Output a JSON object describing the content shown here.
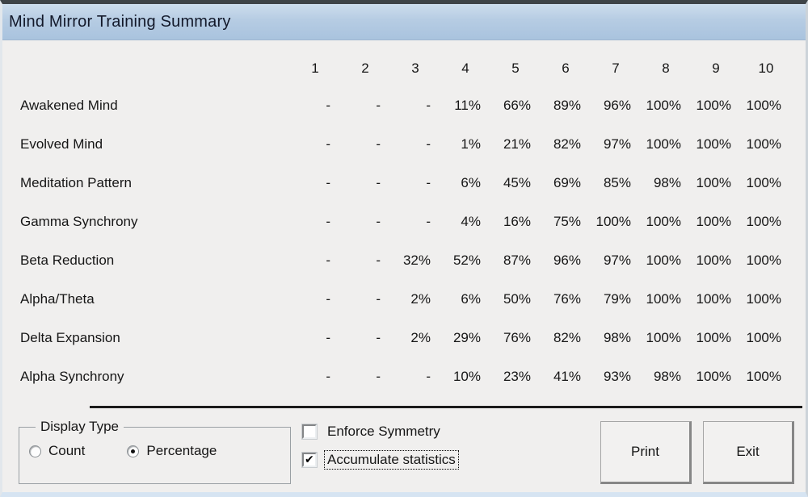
{
  "window": {
    "title": "Mind Mirror Training Summary"
  },
  "table": {
    "columns": [
      "1",
      "2",
      "3",
      "4",
      "5",
      "6",
      "7",
      "8",
      "9",
      "10"
    ],
    "rows": [
      {
        "label": "Awakened Mind",
        "values": [
          "-",
          "-",
          "-",
          "11%",
          "66%",
          "89%",
          "96%",
          "100%",
          "100%",
          "100%"
        ]
      },
      {
        "label": "Evolved Mind",
        "values": [
          "-",
          "-",
          "-",
          "1%",
          "21%",
          "82%",
          "97%",
          "100%",
          "100%",
          "100%"
        ]
      },
      {
        "label": "Meditation Pattern",
        "values": [
          "-",
          "-",
          "-",
          "6%",
          "45%",
          "69%",
          "85%",
          "98%",
          "100%",
          "100%"
        ]
      },
      {
        "label": "Gamma Synchrony",
        "values": [
          "-",
          "-",
          "-",
          "4%",
          "16%",
          "75%",
          "100%",
          "100%",
          "100%",
          "100%"
        ]
      },
      {
        "label": "Beta Reduction",
        "values": [
          "-",
          "-",
          "32%",
          "52%",
          "87%",
          "96%",
          "97%",
          "100%",
          "100%",
          "100%"
        ]
      },
      {
        "label": "Alpha/Theta",
        "values": [
          "-",
          "-",
          "2%",
          "6%",
          "50%",
          "76%",
          "79%",
          "100%",
          "100%",
          "100%"
        ]
      },
      {
        "label": "Delta Expansion",
        "values": [
          "-",
          "-",
          "2%",
          "29%",
          "76%",
          "82%",
          "98%",
          "100%",
          "100%",
          "100%"
        ]
      },
      {
        "label": "Alpha Synchrony",
        "values": [
          "-",
          "-",
          "-",
          "10%",
          "23%",
          "41%",
          "93%",
          "98%",
          "100%",
          "100%"
        ]
      }
    ]
  },
  "display_type": {
    "legend": "Display Type",
    "options": [
      {
        "label": "Count",
        "selected": false
      },
      {
        "label": "Percentage",
        "selected": true
      }
    ]
  },
  "checkboxes": [
    {
      "label": "Enforce Symmetry",
      "checked": false,
      "focused": false
    },
    {
      "label": "Accumulate statistics",
      "checked": true,
      "focused": true
    }
  ],
  "buttons": {
    "print": "Print",
    "exit": "Exit"
  },
  "colors": {
    "titlebar_top": "#cddded",
    "titlebar_bottom": "#a9c3de",
    "body_background": "#f0efee",
    "text": "#161616",
    "title_text": "#13192a",
    "separator": "#1b1b1b",
    "top_frame": "#3e4347",
    "bottom_frame": "#d6e4f2"
  }
}
